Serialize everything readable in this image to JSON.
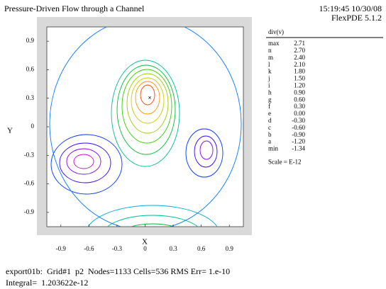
{
  "chart_data": {
    "type": "contour",
    "title": "Pressure-Driven Flow through a Channel",
    "timestamp": "15:19:45 10/30/08",
    "software": "FlexPDE 5.1.2",
    "xlabel": "X",
    "ylabel": "Y",
    "xlim": [
      -1.05,
      1.05
    ],
    "ylim": [
      -1.05,
      1.05
    ],
    "xticks": [
      -0.9,
      -0.6,
      -0.3,
      0,
      0.3,
      0.6,
      0.9
    ],
    "yticks": [
      -0.9,
      -0.6,
      -0.3,
      0,
      0.3,
      0.6,
      0.9
    ],
    "legend_title": "div(v)",
    "max_label": "max",
    "max": 2.71,
    "min_label": "min",
    "min": -1.34,
    "peak": [
      0.05,
      0.3
    ],
    "levels": {
      "letters": [
        "n",
        "m",
        "l",
        "k",
        "j",
        "i",
        "h",
        "g",
        "f",
        "e",
        "d",
        "c",
        "b",
        "a"
      ],
      "values": [
        2.7,
        2.4,
        2.1,
        1.8,
        1.5,
        1.2,
        0.9,
        0.6,
        0.3,
        0,
        -0.3,
        -0.6,
        -0.9,
        -1.2
      ],
      "value_labels": [
        "2.70",
        "2.40",
        "2.10",
        "1.80",
        "1.50",
        "1.20",
        "0.90",
        "0.60",
        "0.30",
        "0.00",
        "-0.30",
        "-0.60",
        "-0.90",
        "-1.20"
      ],
      "colors": [
        "#ff0000",
        "#ff4400",
        "#ff9900",
        "#cccc00",
        "#99cc00",
        "#33cc00",
        "#00bb33",
        "#00bb99",
        "#00aadd",
        "#0077ff",
        "#0033ff",
        "#3300ff",
        "#8800ee",
        "#cc00cc"
      ]
    },
    "scale": "Scale = E-12",
    "footer": [
      "export01b:  Grid#1  p2  Nodes=1133 Cells=536 RMS Err= 1.e-10",
      "Integral=  1.203622e-12"
    ]
  }
}
